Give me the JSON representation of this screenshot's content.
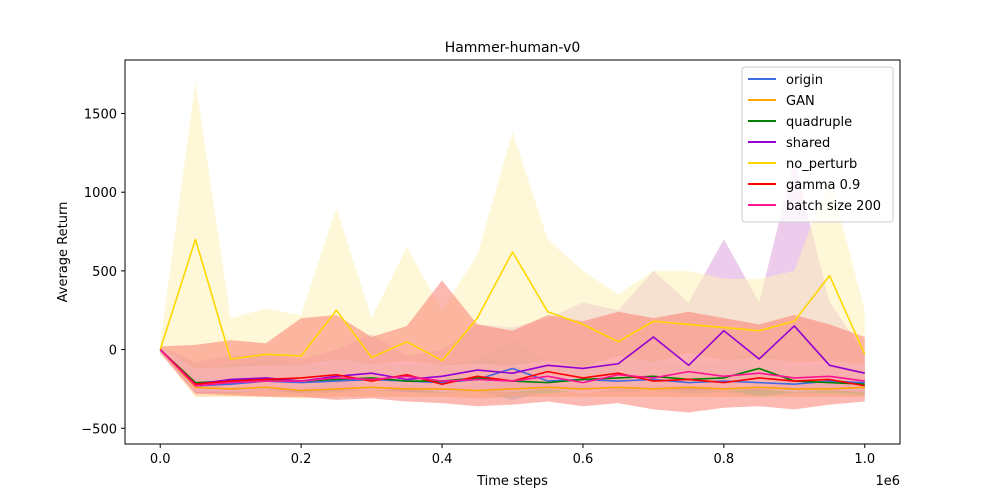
{
  "chart_data": {
    "type": "line",
    "title": "Hammer-human-v0",
    "xlabel": "Time steps",
    "ylabel": "Average Return",
    "x_offset_label": "1e6",
    "xlim": [
      -0.05,
      1.05
    ],
    "ylim": [
      -600,
      1840
    ],
    "x_ticks": [
      0.0,
      0.2,
      0.4,
      0.6,
      0.8,
      1.0
    ],
    "x_tick_labels": [
      "0.0",
      "0.2",
      "0.4",
      "0.6",
      "0.8",
      "1.0"
    ],
    "y_ticks": [
      -500,
      0,
      500,
      1000,
      1500
    ],
    "y_tick_labels": [
      "−500",
      "0",
      "500",
      "1000",
      "1500"
    ],
    "grid": false,
    "legend_position": "upper right",
    "x": [
      0.0,
      0.05,
      0.1,
      0.15,
      0.2,
      0.25,
      0.3,
      0.35,
      0.4,
      0.45,
      0.5,
      0.55,
      0.6,
      0.65,
      0.7,
      0.75,
      0.8,
      0.85,
      0.9,
      0.95,
      1.0
    ],
    "series": [
      {
        "name": "origin",
        "color": "#4169e1",
        "band_color": "#87ceeb",
        "values": [
          0,
          -230,
          -220,
          -200,
          -210,
          -200,
          -190,
          -200,
          -210,
          -190,
          -120,
          -200,
          -190,
          -200,
          -190,
          -210,
          -200,
          -210,
          -220,
          -200,
          -210
        ],
        "upper": [
          20,
          -120,
          -110,
          -60,
          -100,
          -60,
          -80,
          -90,
          -100,
          -60,
          60,
          -80,
          -60,
          -90,
          -70,
          -100,
          -80,
          -100,
          -110,
          -90,
          -100
        ],
        "lower": [
          -20,
          -270,
          -280,
          -260,
          -280,
          -270,
          -260,
          -270,
          -280,
          -260,
          -320,
          -270,
          -260,
          -270,
          -260,
          -280,
          -270,
          -290,
          -280,
          -270,
          -280
        ]
      },
      {
        "name": "GAN",
        "color": "#ffa500",
        "band_color": "#ffc878",
        "values": [
          0,
          -240,
          -250,
          -240,
          -260,
          -250,
          -240,
          -250,
          -250,
          -260,
          -250,
          -240,
          -250,
          -240,
          -250,
          -240,
          -250,
          -240,
          -250,
          -250,
          -240
        ],
        "upper": [
          20,
          -180,
          -190,
          -170,
          -200,
          -190,
          -180,
          -190,
          -190,
          -200,
          -190,
          -180,
          -190,
          -180,
          -190,
          -180,
          -190,
          -180,
          -190,
          -190,
          -180
        ],
        "lower": [
          -20,
          -300,
          -300,
          -300,
          -310,
          -300,
          -300,
          -300,
          -300,
          -310,
          -300,
          -300,
          -300,
          -300,
          -300,
          -300,
          -300,
          -300,
          -300,
          -300,
          -300
        ]
      },
      {
        "name": "quadruple",
        "color": "#008000",
        "band_color": "#90ee90",
        "values": [
          0,
          -210,
          -200,
          -190,
          -200,
          -190,
          -180,
          -200,
          -200,
          -180,
          -200,
          -210,
          -190,
          -180,
          -170,
          -190,
          -180,
          -120,
          -200,
          -210,
          -220
        ],
        "upper": [
          20,
          -100,
          -100,
          -90,
          -100,
          -90,
          -80,
          -100,
          -100,
          -80,
          -100,
          -110,
          -90,
          -80,
          -70,
          -90,
          -80,
          0,
          -100,
          -110,
          -120
        ],
        "lower": [
          -20,
          -270,
          -270,
          -260,
          -270,
          -260,
          -250,
          -270,
          -270,
          -250,
          -270,
          -280,
          -260,
          -250,
          -240,
          -260,
          -250,
          -300,
          -270,
          -280,
          -290
        ]
      },
      {
        "name": "shared",
        "color": "#9400d3",
        "band_color": "#dda0dd",
        "values": [
          0,
          -220,
          -190,
          -180,
          -200,
          -170,
          -150,
          -190,
          -170,
          -130,
          -150,
          -100,
          -120,
          -90,
          80,
          -100,
          120,
          -60,
          150,
          -100,
          -150
        ],
        "upper": [
          20,
          -80,
          -40,
          -20,
          -60,
          0,
          100,
          -40,
          0,
          160,
          140,
          200,
          300,
          250,
          500,
          300,
          700,
          300,
          1200,
          300,
          -20
        ],
        "lower": [
          -20,
          -280,
          -270,
          -260,
          -270,
          -260,
          -250,
          -270,
          -260,
          -250,
          -260,
          -250,
          -260,
          -250,
          -240,
          -260,
          -250,
          -260,
          -250,
          -260,
          -270
        ]
      },
      {
        "name": "no_perturb",
        "color": "#ffd700",
        "band_color": "#fff3b8",
        "values": [
          0,
          700,
          -60,
          -30,
          -40,
          250,
          -50,
          50,
          -70,
          200,
          620,
          240,
          160,
          50,
          180,
          160,
          140,
          120,
          180,
          470,
          -30
        ],
        "upper": [
          40,
          1700,
          200,
          260,
          220,
          900,
          200,
          650,
          250,
          600,
          1380,
          700,
          500,
          350,
          500,
          500,
          450,
          450,
          500,
          1100,
          250
        ],
        "lower": [
          -40,
          -200,
          -250,
          -250,
          -250,
          -200,
          -250,
          -220,
          -250,
          -220,
          -150,
          -220,
          -230,
          -240,
          -230,
          -230,
          -240,
          -240,
          -230,
          -200,
          -250
        ]
      },
      {
        "name": "gamma 0.9",
        "color": "#ff0000",
        "band_color": "#fa8072",
        "values": [
          0,
          -220,
          -200,
          -190,
          -180,
          -160,
          -200,
          -160,
          -220,
          -170,
          -200,
          -140,
          -180,
          -150,
          -200,
          -190,
          -210,
          -180,
          -200,
          -190,
          -230
        ],
        "upper": [
          20,
          30,
          60,
          40,
          200,
          220,
          80,
          150,
          440,
          160,
          120,
          220,
          180,
          240,
          200,
          240,
          200,
          160,
          220,
          160,
          80
        ],
        "lower": [
          -20,
          -280,
          -290,
          -300,
          -300,
          -320,
          -310,
          -330,
          -340,
          -360,
          -350,
          -330,
          -360,
          -340,
          -380,
          -400,
          -370,
          -360,
          -380,
          -350,
          -330
        ]
      },
      {
        "name": "batch size 200",
        "color": "#ff1493",
        "band_color": "#ffb6c1",
        "values": [
          0,
          -230,
          -210,
          -200,
          -200,
          -180,
          -190,
          -170,
          -200,
          -190,
          -200,
          -170,
          -210,
          -160,
          -180,
          -140,
          -170,
          -150,
          -180,
          -170,
          -200
        ],
        "upper": [
          20,
          -120,
          -110,
          -100,
          -100,
          -60,
          -90,
          -70,
          -100,
          -90,
          -100,
          -70,
          -110,
          -40,
          -80,
          -20,
          -70,
          -50,
          -80,
          -70,
          -100
        ],
        "lower": [
          -20,
          -270,
          -270,
          -260,
          -260,
          -250,
          -260,
          -250,
          -270,
          -260,
          -270,
          -250,
          -280,
          -250,
          -260,
          -240,
          -260,
          -250,
          -270,
          -260,
          -270
        ]
      }
    ]
  }
}
